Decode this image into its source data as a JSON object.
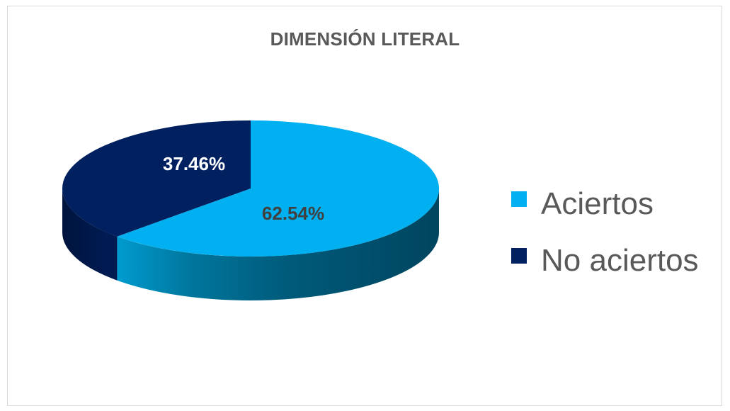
{
  "chart_data": {
    "type": "pie",
    "title": "DIMENSIÓN LITERAL",
    "categories": [
      "Aciertos",
      "No aciertos"
    ],
    "values": [
      62.54,
      37.46
    ],
    "data_labels": [
      "62.54%",
      "37.46%"
    ],
    "colors": [
      "#00b0f0",
      "#002060"
    ],
    "legend_position": "right",
    "style": "3d"
  }
}
